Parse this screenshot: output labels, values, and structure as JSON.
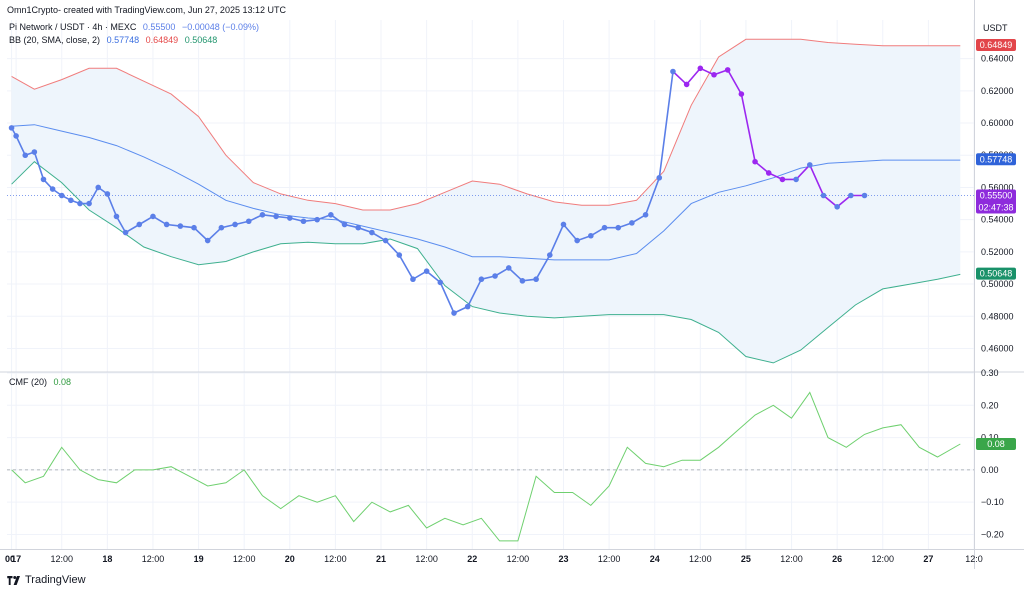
{
  "header": {
    "text": "Omn1Crypto- created with TradingView.com, Jun 27, 2025 13:12 UTC"
  },
  "legend": {
    "symbol": "Pi Network / USDT · 4h · MEXC",
    "price": "0.55500",
    "change": "−0.00048 (−0.09%)",
    "bb_label": "BB (20, SMA, close, 2)",
    "bb_basis": "0.57748",
    "bb_upper": "0.64849",
    "bb_lower": "0.50648",
    "cmf_label": "CMF (20)",
    "cmf_value": "0.08"
  },
  "axis": {
    "currency": "USDT",
    "price_ticks": [
      "0.64000",
      "0.62000",
      "0.60000",
      "0.58000",
      "0.56000",
      "0.54000",
      "0.52000",
      "0.50000",
      "0.48000",
      "0.46000"
    ],
    "cmf_ticks": [
      "0.30",
      "0.20",
      "0.10",
      "0.00",
      "−0.10",
      "−0.20"
    ],
    "time_labels": [
      "00",
      "17",
      "12:00",
      "18",
      "12:00",
      "19",
      "12:00",
      "20",
      "12:00",
      "21",
      "12:00",
      "22",
      "12:00",
      "23",
      "12:00",
      "24",
      "12:00",
      "25",
      "12:00",
      "26",
      "12:00",
      "27",
      "12:0"
    ]
  },
  "price_tags": {
    "upper": "0.64849",
    "last": "0.55500",
    "countdown": "02:47:38",
    "basis": "0.57748",
    "lower": "0.50648",
    "cmf": "0.08"
  },
  "brand": {
    "text": "TradingView"
  },
  "colors": {
    "price_line": "#5b7fe8",
    "price_line_recent": "#9c27f0",
    "bb_upper": "#f07c7c",
    "bb_basis": "#5b8def",
    "bb_lower": "#3fb08f",
    "bb_fill": "#eef5fc",
    "cmf": "#6fd06f",
    "grid": "#f0f3fa"
  },
  "chart_data": [
    {
      "type": "line",
      "x": [
        16.95,
        17.0,
        17.1,
        17.2,
        17.3,
        17.4,
        17.5,
        17.6,
        17.7,
        17.8,
        17.9,
        18.0,
        18.1,
        18.2,
        18.35,
        18.5,
        18.65,
        18.8,
        18.95,
        19.1,
        19.25,
        19.4,
        19.55,
        19.7,
        19.85,
        20.0,
        20.15,
        20.3,
        20.45,
        20.6,
        20.75,
        20.9,
        21.05,
        21.2,
        21.35,
        21.5,
        21.65,
        21.8,
        21.95,
        22.1,
        22.25,
        22.4,
        22.55,
        22.7,
        22.85,
        23.0,
        23.15,
        23.3,
        23.45,
        23.6,
        23.75,
        23.9,
        24.05,
        24.2,
        24.35,
        24.5,
        24.65,
        24.8,
        24.95,
        25.1,
        25.25,
        25.4,
        25.55,
        25.7,
        25.85,
        26.0,
        26.15,
        26.3,
        26.45,
        26.6,
        26.75,
        26.9,
        27.05,
        27.2,
        27.35
      ],
      "xlabel": "",
      "ylabel": "",
      "series": [
        {
          "values": [
            0.597,
            0.592,
            0.58,
            0.582,
            0.565,
            0.559,
            0.555,
            0.552,
            0.55,
            0.55,
            0.56,
            0.556,
            0.542,
            0.532,
            0.537,
            0.542,
            0.537,
            0.536,
            0.535,
            0.527,
            0.535,
            0.537,
            0.539,
            0.543,
            0.542,
            0.541,
            0.539,
            0.54,
            0.543,
            0.537,
            0.535,
            0.532,
            0.527,
            0.518,
            0.503,
            0.508,
            0.501,
            0.482,
            0.486,
            0.503,
            0.505,
            0.51,
            0.502,
            0.503,
            0.518,
            0.537,
            0.527,
            0.53,
            0.535,
            0.535,
            0.538,
            0.543,
            0.566,
            0.632,
            0.624,
            0.634,
            0.63,
            0.633,
            0.618,
            0.576,
            0.569,
            0.565,
            0.565,
            0.574,
            0.555,
            0.548,
            0.555,
            0.555,
            0.555,
            0.555,
            0.555,
            0.555,
            0.555,
            0.555,
            0.555
          ]
        }
      ],
      "ylim": [
        0.446,
        0.664
      ],
      "xlim": [
        16.9,
        27.5
      ]
    },
    {
      "type": "line",
      "xlabel": "",
      "ylabel": "",
      "x": [
        16.95,
        17.2,
        17.5,
        17.8,
        18.1,
        18.4,
        18.7,
        19.0,
        19.3,
        19.6,
        19.9,
        20.2,
        20.5,
        20.8,
        21.1,
        21.4,
        21.7,
        22.0,
        22.3,
        22.6,
        22.9,
        23.2,
        23.5,
        23.8,
        24.1,
        24.4,
        24.7,
        25.0,
        25.3,
        25.6,
        25.9,
        26.2,
        26.5,
        26.8,
        27.1,
        27.35
      ],
      "series": [
        {
          "values": [
            0.629,
            0.621,
            0.627,
            0.634,
            0.634,
            0.626,
            0.618,
            0.604,
            0.58,
            0.563,
            0.556,
            0.552,
            0.55,
            0.546,
            0.546,
            0.55,
            0.557,
            0.564,
            0.562,
            0.556,
            0.551,
            0.549,
            0.549,
            0.552,
            0.57,
            0.611,
            0.641,
            0.652,
            0.652,
            0.652,
            0.65,
            0.649,
            0.648,
            0.648,
            0.648,
            0.648
          ]
        },
        {
          "values": [
            0.598,
            0.599,
            0.595,
            0.591,
            0.586,
            0.579,
            0.571,
            0.562,
            0.552,
            0.547,
            0.543,
            0.541,
            0.54,
            0.536,
            0.532,
            0.528,
            0.523,
            0.517,
            0.517,
            0.516,
            0.515,
            0.515,
            0.515,
            0.519,
            0.533,
            0.55,
            0.557,
            0.561,
            0.566,
            0.572,
            0.575,
            0.576,
            0.577,
            0.577,
            0.577,
            0.577
          ]
        },
        {
          "values": [
            0.562,
            0.576,
            0.563,
            0.546,
            0.535,
            0.523,
            0.517,
            0.512,
            0.514,
            0.52,
            0.525,
            0.526,
            0.525,
            0.525,
            0.528,
            0.522,
            0.499,
            0.486,
            0.482,
            0.48,
            0.479,
            0.48,
            0.481,
            0.481,
            0.481,
            0.478,
            0.47,
            0.455,
            0.451,
            0.459,
            0.473,
            0.487,
            0.497,
            0.5,
            0.503,
            0.506
          ]
        }
      ],
      "ylim": [
        0.446,
        0.664
      ]
    },
    {
      "type": "line",
      "x": [
        16.95,
        17.1,
        17.3,
        17.5,
        17.7,
        17.9,
        18.1,
        18.3,
        18.5,
        18.7,
        18.9,
        19.1,
        19.3,
        19.5,
        19.7,
        19.9,
        20.1,
        20.3,
        20.5,
        20.7,
        20.9,
        21.1,
        21.3,
        21.5,
        21.7,
        21.9,
        22.1,
        22.3,
        22.5,
        22.7,
        22.9,
        23.1,
        23.3,
        23.5,
        23.7,
        23.9,
        24.1,
        24.3,
        24.5,
        24.7,
        24.9,
        25.1,
        25.3,
        25.5,
        25.7,
        25.9,
        26.1,
        26.3,
        26.5,
        26.7,
        26.9,
        27.1,
        27.35
      ],
      "series": [
        {
          "values": [
            0.0,
            -0.04,
            -0.02,
            0.07,
            0.0,
            -0.03,
            -0.04,
            0.0,
            0.0,
            0.01,
            -0.02,
            -0.05,
            -0.04,
            0.0,
            -0.08,
            -0.12,
            -0.08,
            -0.1,
            -0.08,
            -0.16,
            -0.1,
            -0.13,
            -0.11,
            -0.18,
            -0.15,
            -0.17,
            -0.15,
            -0.22,
            -0.22,
            -0.02,
            -0.07,
            -0.07,
            -0.11,
            -0.05,
            0.07,
            0.02,
            0.01,
            0.03,
            0.03,
            0.07,
            0.12,
            0.17,
            0.2,
            0.16,
            0.24,
            0.1,
            0.07,
            0.11,
            0.13,
            0.14,
            0.07,
            0.04,
            0.08
          ]
        }
      ],
      "ylim": [
        -0.245,
        0.3
      ],
      "xlabel": "",
      "ylabel": "",
      "grid": false,
      "legend": "top-left"
    }
  ]
}
